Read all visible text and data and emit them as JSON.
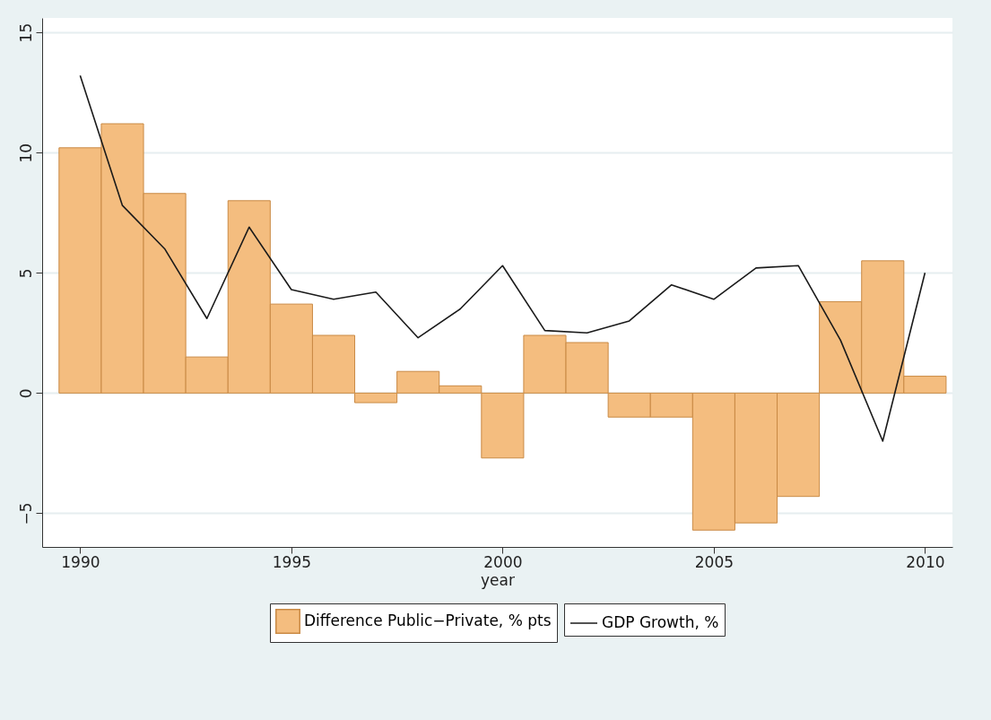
{
  "chart_data": {
    "type": "bar",
    "xlabel": "year",
    "x": [
      1990,
      1991,
      1992,
      1993,
      1994,
      1995,
      1996,
      1997,
      1998,
      1999,
      2000,
      2001,
      2002,
      2003,
      2004,
      2005,
      2006,
      2007,
      2008,
      2009,
      2010
    ],
    "series": [
      {
        "name": "Difference Public−Private, % pts",
        "color": "#f4bd7f",
        "values": [
          10.2,
          11.2,
          8.3,
          1.5,
          8.0,
          3.7,
          2.4,
          -0.4,
          0.9,
          0.3,
          -2.7,
          2.4,
          2.1,
          -1.0,
          -1.0,
          -5.7,
          -5.4,
          -4.3,
          3.8,
          5.5,
          0.7
        ]
      },
      {
        "name": "GDP Growth, %",
        "type": "line",
        "color": "#1a1a1a",
        "values": [
          13.2,
          7.8,
          6.0,
          3.1,
          6.9,
          4.3,
          3.9,
          4.2,
          2.3,
          3.5,
          5.3,
          2.6,
          2.5,
          3.0,
          4.5,
          3.9,
          5.2,
          5.3,
          2.2,
          -2.0,
          5.0
        ]
      }
    ],
    "xlim": [
      1989.1,
      2010.65
    ],
    "xticks": [
      1990,
      1995,
      2000,
      2005,
      2010
    ],
    "ylim": [
      -6.4,
      15.6
    ],
    "yticks": [
      -5,
      0,
      5,
      10,
      15
    ],
    "grid": "y",
    "legend": "bottom"
  }
}
